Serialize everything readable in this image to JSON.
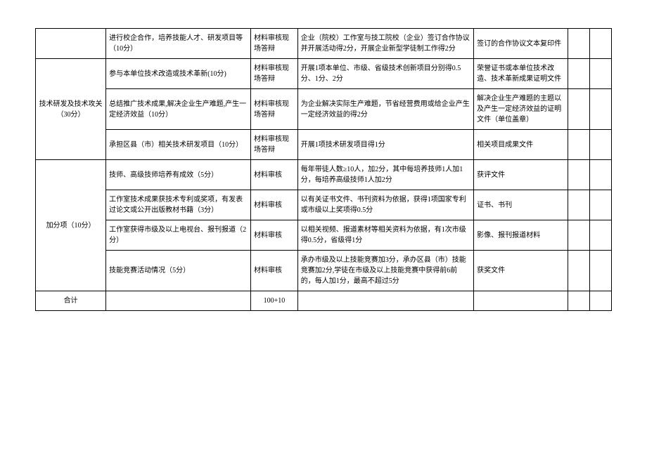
{
  "table": {
    "rows": [
      {
        "category": "",
        "item": "进行校企合作，培养技能人才、研发项目等（10分）",
        "method": "材料审核现场答辩",
        "standard": "企业（院校）工作室与技工院校（企业）签订合作协议并开展活动得2分，开展企业新型学徒制工作得2分",
        "evidence": "签订的合作协议文本复印件"
      },
      {
        "item": "参与本单位技术改造或技术革新(10分)",
        "method": "材料审核现场答辩",
        "standard": "开展1项本单位、市级、省级技术创新项目分别得0.5分、1分、2分",
        "evidence": "荣誉证书或本单位技术改造、技术革新成果证明文件"
      },
      {
        "category": "技术研发及技术攻关（30分）",
        "item": "总结推广技术成果,解决企业生产难题,产生一定经济效益（10分）",
        "method": "材料审核现场答辩",
        "standard": "为企业解决实际生产难题，节省经营费用或给企业产生一定经济效益的得2分",
        "evidence": "解决企业生产难题的主题以及产生一定经济效益的证明文件（单位盖章）"
      },
      {
        "item": "承担区县（市）相关技术研发项目（10分）",
        "method": "材料审核现场答辩",
        "standard": "开展1项技术研发项目得1分",
        "evidence": "相关项目成果文件"
      },
      {
        "item": "技师、高级技师培养有成效（5分）",
        "method": "材料审核",
        "standard": "每年带徒人数≥10人，加2分，其中每培养技师1人加1分，每培养高级技师1人加2分",
        "evidence": "获评文件"
      },
      {
        "category": "加分项（10分）",
        "item": "工作室技术成果获技术专利或奖项，有发表过论文或公开出版教材书籍（3分）",
        "method": "材料审核",
        "standard": "以有关证书文件、书刊资料为依据，获得1项国家专利或市级以上奖项得0.5分",
        "evidence": "证书、书刊"
      },
      {
        "item": "工作室获得市级及以上电视台、报刊报道（2分）",
        "method": "材料审核",
        "standard": "以相关视频、报道素材等相关资料为依据，有1次市级得0.5分，省级得1分",
        "evidence": "影像、报刊报道材料"
      },
      {
        "item": "技能竞赛活动情况（5分）",
        "method": "材料审核",
        "standard": "承办市级及以上技能竞赛加3分，承办区县（市）技能竞赛加2分,学徒在市级及以上技能竞赛中获得前6前的，每人加1分，最高不超过5分",
        "evidence": "获奖文件"
      }
    ],
    "total": {
      "label": "合计",
      "value": "100+10"
    }
  }
}
